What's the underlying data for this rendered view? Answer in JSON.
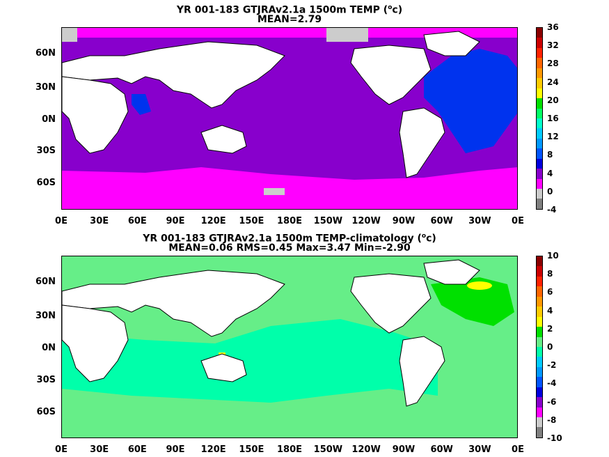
{
  "panels": [
    {
      "title_line1": "YR 001-183 GTJRAv2.1a 1500m TEMP (",
      "title_sup": "o",
      "title_unit": "c)",
      "title_line2": "MEAN=2.79",
      "lat_labels": [
        "60N",
        "30N",
        "0N",
        "30S",
        "60S"
      ],
      "lon_labels": [
        "0E",
        "30E",
        "60E",
        "90E",
        "120E",
        "150E",
        "180E",
        "150W",
        "120W",
        "90W",
        "60W",
        "30W",
        "0E"
      ],
      "colorbar_labels": [
        "36",
        "32",
        "28",
        "24",
        "20",
        "16",
        "12",
        "8",
        "4",
        "0",
        "-4"
      ],
      "colorbar_colors": [
        "#8b0000",
        "#cc0000",
        "#ff2200",
        "#ff6600",
        "#ff9900",
        "#ffcc00",
        "#ffff00",
        "#00e000",
        "#00ff66",
        "#00ffcc",
        "#00ccff",
        "#0099ff",
        "#0055ff",
        "#0000dd",
        "#8800cc",
        "#ff00ff",
        "#cccccc",
        "#808080"
      ],
      "ocean_colors": {
        "main": "#8800cc",
        "north_atlantic": "#0033ee",
        "southern": "#ff00ff",
        "arctic": "#ff00ff",
        "ice": "#cccccc"
      }
    },
    {
      "title_line1": "YR 001-183 GTJRAv2.1a 1500m TEMP-climatology (",
      "title_sup": "o",
      "title_unit": "c)",
      "title_line2": "MEAN=0.06   RMS=0.45   Max=3.47   Min=-2.90",
      "lat_labels": [
        "60N",
        "30N",
        "0N",
        "30S",
        "60S"
      ],
      "lon_labels": [
        "0E",
        "30E",
        "60E",
        "90E",
        "120E",
        "150E",
        "180E",
        "150W",
        "120W",
        "90W",
        "60W",
        "30W",
        "0E"
      ],
      "colorbar_labels": [
        "10",
        "8",
        "6",
        "4",
        "2",
        "0",
        "-2",
        "-4",
        "-6",
        "-8",
        "-10"
      ],
      "colorbar_colors": [
        "#8b0000",
        "#cc0000",
        "#ff2200",
        "#ff6600",
        "#ff9900",
        "#ffcc00",
        "#ffff00",
        "#00e000",
        "#66ee88",
        "#00ffaa",
        "#00ccff",
        "#0099ff",
        "#0055ff",
        "#0000dd",
        "#8800cc",
        "#ff00ff",
        "#cccccc",
        "#808080"
      ],
      "ocean_colors": {
        "main": "#66ee88",
        "tropics": "#00ffaa",
        "north_atlantic": "#00e000",
        "hot": "#ffff00"
      }
    }
  ]
}
